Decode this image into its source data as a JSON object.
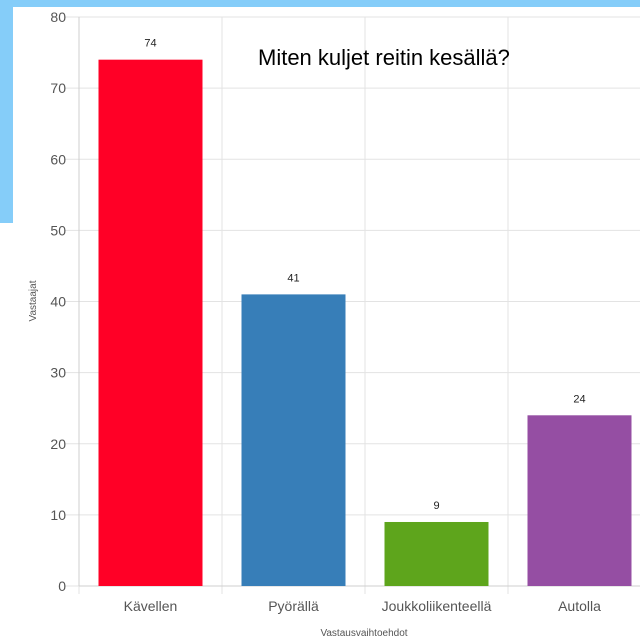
{
  "chart_data": {
    "type": "bar",
    "title": "Miten kuljet reitin kesällä?",
    "xlabel": "Vastausvaihtoehdot",
    "ylabel": "Vastaajat",
    "categories": [
      "Kävellen",
      "Pyörällä",
      "Joukkoliikenteellä",
      "Autolla"
    ],
    "values": [
      74,
      41,
      9,
      24
    ],
    "colors": [
      "#ff0026",
      "#377eb8",
      "#5ea51c",
      "#954ea3"
    ],
    "ylim": [
      0,
      80
    ],
    "yticks": [
      0,
      10,
      20,
      30,
      40,
      50,
      60,
      70,
      80
    ],
    "grid": true,
    "data_labels": true
  }
}
